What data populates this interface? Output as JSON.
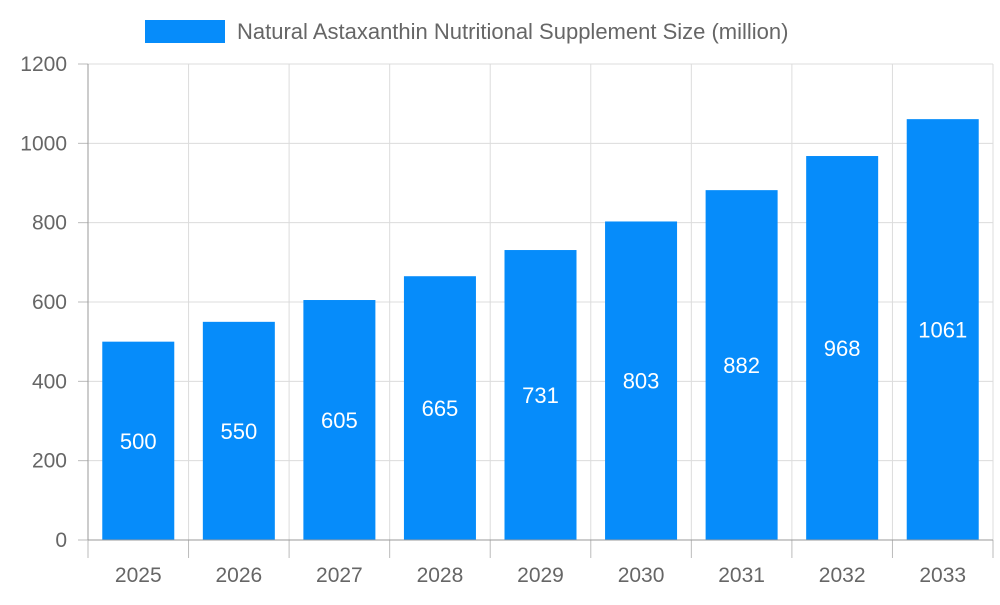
{
  "chart_data": {
    "type": "bar",
    "title": "",
    "xlabel": "",
    "ylabel": "",
    "categories": [
      "2025",
      "2026",
      "2027",
      "2028",
      "2029",
      "2030",
      "2031",
      "2032",
      "2033"
    ],
    "series": [
      {
        "name": "Natural Astaxanthin Nutritional Supplement Size (million)",
        "values": [
          500,
          550,
          605,
          665,
          731,
          803,
          882,
          968,
          1061
        ],
        "color": "#068CFA"
      }
    ],
    "ylim": [
      0,
      1200
    ],
    "yticks": [
      0,
      200,
      400,
      600,
      800,
      1000,
      1200
    ],
    "grid": true,
    "legend": "top-center",
    "data_labels": true
  }
}
